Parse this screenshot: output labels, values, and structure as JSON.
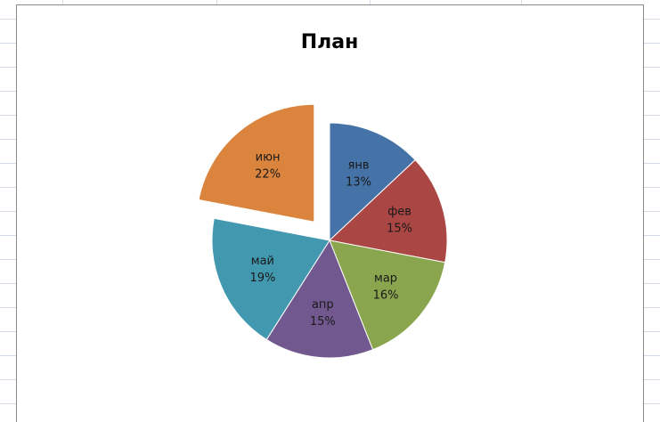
{
  "chart_data": {
    "type": "pie",
    "title": "План",
    "categories": [
      "янв",
      "фев",
      "мар",
      "апр",
      "май",
      "июн"
    ],
    "values": [
      13,
      15,
      16,
      15,
      19,
      22
    ],
    "value_labels": [
      "13%",
      "15%",
      "16%",
      "15%",
      "19%",
      "22%"
    ],
    "colors": [
      "#4572a7",
      "#aa4643",
      "#89a54e",
      "#71588f",
      "#4198af",
      "#db843d"
    ],
    "exploded": [
      "июн"
    ]
  }
}
